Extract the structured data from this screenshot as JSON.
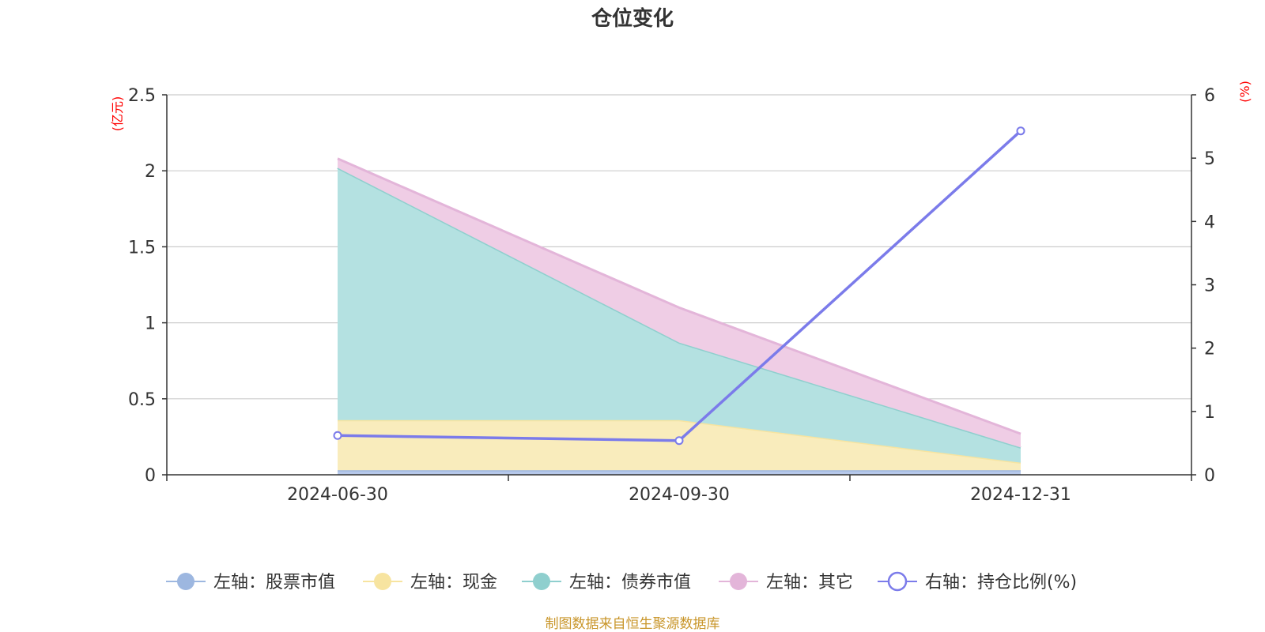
{
  "chart_data": {
    "type": "area",
    "title": "仓位变化",
    "source": "制图数据来自恒生聚源数据库",
    "categories": [
      "2024-06-30",
      "2024-09-30",
      "2024-12-31"
    ],
    "left_axis": {
      "unit": "(亿元)",
      "ylim": [
        0,
        2.5
      ],
      "ticks": [
        "0",
        "0.5",
        "1",
        "1.5",
        "2",
        "2.5"
      ]
    },
    "right_axis": {
      "unit": "(%)",
      "ylim": [
        0,
        6
      ],
      "ticks": [
        "0",
        "1",
        "2",
        "3",
        "4",
        "5",
        "6"
      ]
    },
    "series": [
      {
        "name": "左轴：股票市值",
        "axis": "left",
        "stack": true,
        "values": [
          0.03,
          0.03,
          0.03
        ],
        "color": "#9db7e0",
        "fill": "#b6c8ea"
      },
      {
        "name": "左轴：现金",
        "axis": "left",
        "stack": true,
        "values": [
          0.33,
          0.33,
          0.05
        ],
        "color": "#f7e4a0",
        "fill": "#f9ecbc"
      },
      {
        "name": "左轴：债券市值",
        "axis": "left",
        "stack": true,
        "values": [
          1.66,
          0.51,
          0.1
        ],
        "color": "#8fcfce",
        "fill": "#b4e1e1"
      },
      {
        "name": "左轴：其它",
        "axis": "left",
        "stack": true,
        "values": [
          0.06,
          0.23,
          0.09
        ],
        "color": "#e3b5d9",
        "fill": "#efcde5"
      },
      {
        "name": "右轴：持仓比例(%)",
        "axis": "right",
        "stack": false,
        "values": [
          0.62,
          0.54,
          5.43
        ],
        "color": "#7b7bea"
      }
    ]
  }
}
